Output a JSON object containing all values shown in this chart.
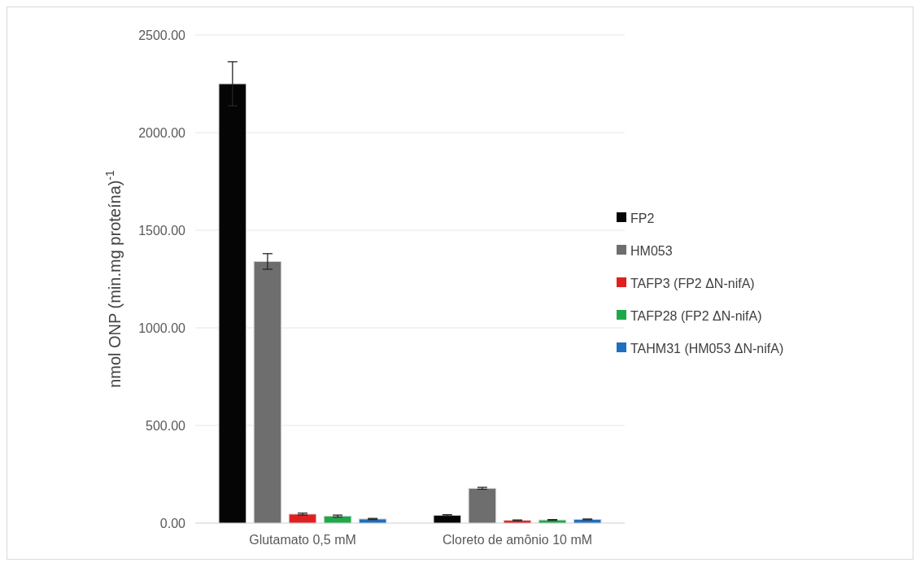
{
  "chart_data": {
    "type": "bar",
    "ylabel": "nmol ONP (min.mg proteína)$^{-1}$",
    "categories": [
      "Glutamato 0,5 mM",
      "Cloreto de amônio 10 mM"
    ],
    "series": [
      {
        "name": "FP2",
        "color": "#050505",
        "values": [
          2250,
          40
        ],
        "errors": [
          113,
          3
        ]
      },
      {
        "name": "HM053",
        "color": "#6e6e6e",
        "values": [
          1340,
          178
        ],
        "errors": [
          40,
          5
        ]
      },
      {
        "name": "TAFP3 (FP2 ΔN-nifA)",
        "color": "#e02020",
        "values": [
          46,
          14
        ],
        "errors": [
          5,
          2
        ]
      },
      {
        "name": "TAFP28 (FP2 ΔN-nifA)",
        "color": "#1fa84a",
        "values": [
          36,
          16
        ],
        "errors": [
          5,
          2
        ]
      },
      {
        "name": "TAHM31 (HM053 ΔN-nifA)",
        "color": "#1f6fc0",
        "values": [
          21,
          19
        ],
        "errors": [
          3,
          2
        ]
      }
    ],
    "ylim": [
      0,
      2500
    ],
    "yticks": [
      {
        "value": 0,
        "label": "0.00"
      },
      {
        "value": 500,
        "label": "500.00"
      },
      {
        "value": 1000,
        "label": "1000.00"
      },
      {
        "value": 1500,
        "label": "1500.00"
      },
      {
        "value": 2000,
        "label": "2000.00"
      },
      {
        "value": 2500,
        "label": "2500.00"
      }
    ],
    "grid": "y",
    "legend": "right"
  }
}
